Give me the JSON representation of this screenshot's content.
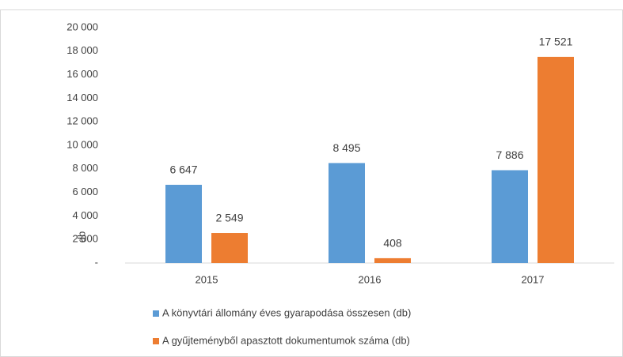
{
  "chart_data": {
    "type": "bar",
    "y_label": "db",
    "categories": [
      "2015",
      "2016",
      "2017"
    ],
    "series": [
      {
        "name": "A könyvtári állomány éves gyarapodása összesen (db)",
        "color": "#5b9bd5",
        "values": [
          6647,
          8495,
          7886
        ],
        "value_labels": [
          "6 647",
          "8 495",
          "7 886"
        ]
      },
      {
        "name": "A gyűjteményből apasztott dokumentumok száma (db)",
        "color": "#ed7d31",
        "values": [
          2549,
          408,
          17521
        ],
        "value_labels": [
          "2 549",
          "408",
          "17 521"
        ]
      }
    ],
    "ylim": [
      0,
      20000
    ],
    "yticks": [
      {
        "value": 0,
        "label": "-"
      },
      {
        "value": 2000,
        "label": "2 000"
      },
      {
        "value": 4000,
        "label": "4 000"
      },
      {
        "value": 6000,
        "label": "6 000"
      },
      {
        "value": 8000,
        "label": "8 000"
      },
      {
        "value": 10000,
        "label": "10 000"
      },
      {
        "value": 12000,
        "label": "12 000"
      },
      {
        "value": 14000,
        "label": "14 000"
      },
      {
        "value": 16000,
        "label": "16 000"
      },
      {
        "value": 18000,
        "label": "18 000"
      },
      {
        "value": 20000,
        "label": "20 000"
      }
    ],
    "grid": false,
    "legend": "bottom"
  }
}
